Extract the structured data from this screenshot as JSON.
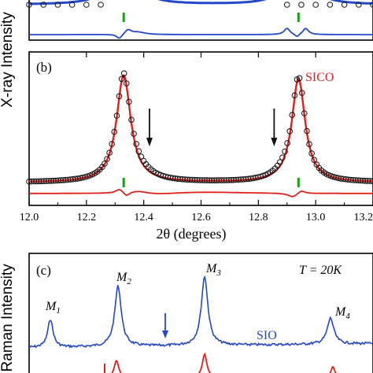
{
  "chart_data": [
    {
      "type": "line",
      "panel_label": "",
      "xlim": [
        12.0,
        13.2
      ],
      "colors": {
        "fit": "#2348c8",
        "obs": "#111111",
        "bragg": "#18a018"
      },
      "series": [
        {
          "kind": "observed",
          "x": [
            12.0,
            12.05,
            12.1,
            12.15,
            12.2,
            12.25,
            12.9,
            12.95,
            13.0,
            13.05,
            13.1,
            13.15,
            13.2
          ]
        },
        {
          "kind": "fit"
        },
        {
          "kind": "difference"
        }
      ],
      "bragg_positions": [
        12.33,
        12.94
      ]
    },
    {
      "type": "line",
      "panel_label": "(b)",
      "legend": "SICO",
      "xlim": [
        12.0,
        13.2
      ],
      "xticks": [
        "12.0",
        "12.2",
        "12.4",
        "12.6",
        "12.8",
        "13.0",
        "13.2"
      ],
      "xtick_values": [
        12.0,
        12.2,
        12.4,
        12.6,
        12.8,
        13.0,
        13.2
      ],
      "xlabel": "2θ (degrees)",
      "ylabel": "X-ray Intensity",
      "colors": {
        "fit": "#e0201c",
        "obs": "#111111",
        "bragg": "#18a018",
        "arrow": "#111111"
      },
      "peaks": [
        12.33,
        12.94
      ],
      "bragg_positions": [
        12.33,
        12.94
      ],
      "arrows_at": [
        12.42,
        12.855
      ]
    },
    {
      "type": "line",
      "panel_label": "(c)",
      "ylabel": "Raman Intensity",
      "annotation": "T = 20K",
      "series_label": "SIO",
      "colors": {
        "sio": "#2348c8",
        "sico": "#e0201c",
        "arrow": "#2348c8"
      },
      "peak_labels": [
        {
          "main": "M",
          "sub": "1"
        },
        {
          "main": "M",
          "sub": "2"
        },
        {
          "main": "M",
          "sub": "3"
        },
        {
          "main": "M",
          "sub": "4"
        }
      ]
    }
  ]
}
